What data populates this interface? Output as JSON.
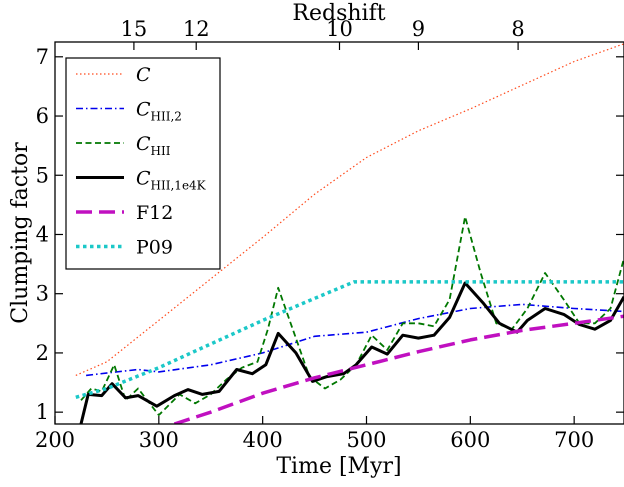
{
  "chart_data": {
    "type": "line",
    "xlabel": "Time [Myr]",
    "ylabel": "Clumping factor",
    "top_xlabel": "Redshift",
    "xlim": [
      200,
      748
    ],
    "ylim": [
      0.8,
      7.25
    ],
    "x_ticks": [
      200,
      300,
      400,
      500,
      600,
      700
    ],
    "y_ticks": [
      1,
      2,
      3,
      4,
      5,
      6,
      7
    ],
    "top_ticks": [
      {
        "label": "15",
        "time": 276
      },
      {
        "label": "12",
        "time": 336
      },
      {
        "label": "10",
        "time": 474
      },
      {
        "label": "9",
        "time": 550
      },
      {
        "label": "8",
        "time": 646
      }
    ],
    "grid": false,
    "legend_position": "top-left",
    "series": [
      {
        "name": "C",
        "legend_main": "C",
        "legend_sub": "",
        "color": "#ff4a1c",
        "style": "dotted",
        "x": [
          220,
          250,
          300,
          350,
          400,
          450,
          500,
          550,
          600,
          650,
          700,
          748
        ],
        "y": [
          1.62,
          1.85,
          2.55,
          3.25,
          3.95,
          4.68,
          5.3,
          5.75,
          6.12,
          6.52,
          6.92,
          7.22
        ]
      },
      {
        "name": "C_HII,2",
        "legend_main": "C",
        "legend_sub": "HII,2",
        "color": "#0000ee",
        "style": "dashdot",
        "x": [
          230,
          280,
          300,
          350,
          400,
          450,
          500,
          550,
          600,
          650,
          700,
          748
        ],
        "y": [
          1.62,
          1.72,
          1.68,
          1.8,
          2.0,
          2.28,
          2.35,
          2.58,
          2.75,
          2.82,
          2.75,
          2.7
        ]
      },
      {
        "name": "C_HII",
        "legend_main": "C",
        "legend_sub": "HII",
        "color": "#007700",
        "style": "dashed",
        "x": [
          225,
          235,
          245,
          257,
          268,
          280,
          300,
          320,
          335,
          350,
          365,
          380,
          395,
          405,
          415,
          430,
          445,
          460,
          475,
          490,
          505,
          520,
          535,
          550,
          565,
          580,
          595,
          610,
          625,
          640,
          655,
          672,
          690,
          705,
          720,
          735,
          748
        ],
        "y": [
          1.2,
          1.4,
          1.35,
          1.8,
          1.2,
          1.4,
          0.95,
          1.3,
          1.15,
          1.3,
          1.55,
          1.75,
          1.85,
          2.4,
          3.1,
          2.35,
          1.6,
          1.4,
          1.55,
          1.8,
          2.3,
          2.05,
          2.5,
          2.5,
          2.45,
          2.9,
          4.3,
          3.35,
          2.5,
          2.4,
          2.75,
          3.35,
          2.9,
          2.5,
          2.5,
          2.75,
          3.6
        ]
      },
      {
        "name": "C_HII,1e4K",
        "legend_main": "C",
        "legend_sub": "HII,1e4K",
        "color": "#000000",
        "style": "solid",
        "x": [
          225,
          232,
          245,
          255,
          268,
          280,
          298,
          315,
          328,
          342,
          358,
          375,
          390,
          403,
          415,
          432,
          448,
          462,
          478,
          490,
          505,
          520,
          535,
          550,
          565,
          580,
          595,
          612,
          628,
          645,
          655,
          672,
          690,
          705,
          720,
          735,
          748
        ],
        "y": [
          0.8,
          1.3,
          1.28,
          1.48,
          1.24,
          1.28,
          1.1,
          1.28,
          1.38,
          1.3,
          1.35,
          1.72,
          1.65,
          1.8,
          2.33,
          2.0,
          1.52,
          1.6,
          1.65,
          1.8,
          2.1,
          1.98,
          2.3,
          2.25,
          2.3,
          2.6,
          3.18,
          2.85,
          2.5,
          2.35,
          2.55,
          2.75,
          2.65,
          2.48,
          2.4,
          2.55,
          2.95
        ]
      },
      {
        "name": "F12",
        "legend_main": "F12",
        "legend_sub": "",
        "color": "#c010c0",
        "style": "longdash",
        "x": [
          315,
          350,
          400,
          450,
          500,
          550,
          600,
          650,
          700,
          748
        ],
        "y": [
          0.8,
          1.0,
          1.32,
          1.58,
          1.8,
          2.02,
          2.22,
          2.38,
          2.5,
          2.62
        ]
      },
      {
        "name": "P09",
        "legend_main": "P09",
        "legend_sub": "",
        "color": "#1cc8c8",
        "style": "thickdot",
        "x": [
          220,
          250,
          300,
          350,
          400,
          450,
          488,
          550,
          600,
          650,
          700,
          748
        ],
        "y": [
          1.25,
          1.4,
          1.75,
          2.15,
          2.55,
          2.92,
          3.2,
          3.2,
          3.2,
          3.2,
          3.2,
          3.2
        ]
      }
    ]
  }
}
